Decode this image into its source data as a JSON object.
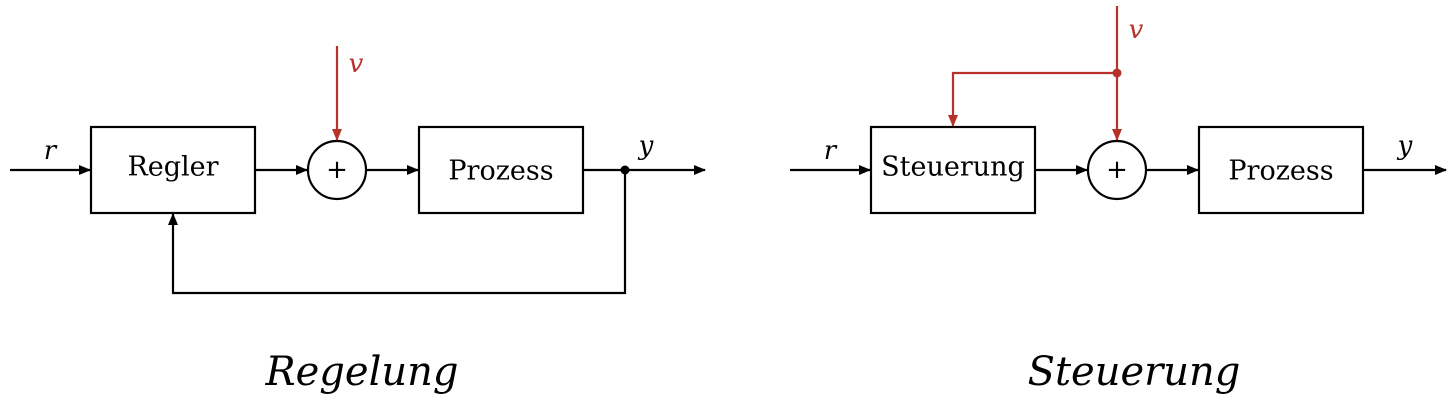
{
  "colors": {
    "line": "#000000",
    "disturbance": "#b5332a",
    "background": "#ffffff"
  },
  "regelung": {
    "caption": "Regelung",
    "input_label": "r",
    "output_label": "y",
    "disturbance_label": "v",
    "controller_label": "Regler",
    "process_label": "Prozess",
    "sum_symbol": "+"
  },
  "steuerung": {
    "caption": "Steuerung",
    "input_label": "r",
    "output_label": "y",
    "disturbance_label": "v",
    "controller_label": "Steuerung",
    "process_label": "Prozess",
    "sum_symbol": "+"
  }
}
